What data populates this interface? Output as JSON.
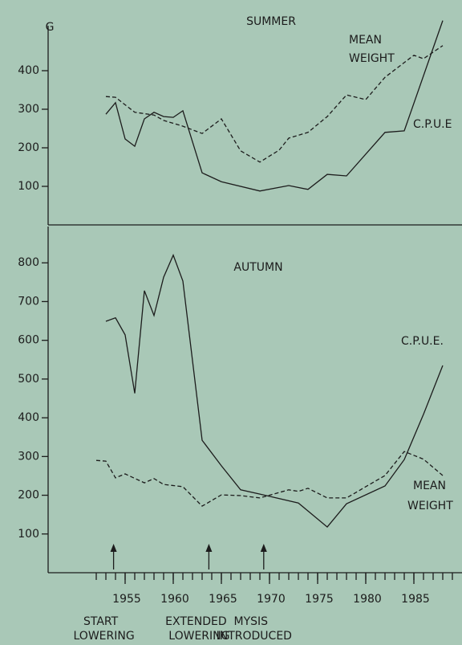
{
  "chart_data": [
    {
      "type": "line",
      "title": "SUMMER",
      "ylabel": "G",
      "xlim": [
        1947,
        1990
      ],
      "ylim": [
        0,
        500
      ],
      "yticks": [
        100,
        200,
        300,
        400
      ],
      "series": [
        {
          "name": [
            "C.P.U.E"
          ],
          "color": "#1c1c1c",
          "style": "solid",
          "x": [
            1953,
            1954,
            1955,
            1956,
            1957,
            1958,
            1959,
            1960,
            1961,
            1963,
            1965,
            1969,
            1972,
            1974,
            1976,
            1978,
            1982,
            1984,
            1988
          ],
          "values": [
            287,
            317,
            223,
            204,
            275,
            292,
            281,
            279,
            296,
            135,
            112,
            88,
            102,
            92,
            131,
            127,
            240,
            244,
            530
          ]
        },
        {
          "name": [
            "MEAN",
            "WEIGHT"
          ],
          "color": "#1c1c1c",
          "style": "dashed",
          "x": [
            1953,
            1954,
            1956,
            1958,
            1959,
            1961,
            1963,
            1965,
            1967,
            1969,
            1971,
            1972,
            1974,
            1976,
            1978,
            1980,
            1982,
            1984,
            1985,
            1986,
            1988
          ],
          "values": [
            333,
            331,
            292,
            285,
            271,
            256,
            237,
            275,
            192,
            163,
            194,
            225,
            240,
            281,
            337,
            325,
            383,
            421,
            440,
            431,
            465
          ]
        }
      ]
    },
    {
      "type": "line",
      "title": "AUTUMN",
      "xlim": [
        1947,
        1990
      ],
      "ylim": [
        0,
        900
      ],
      "yticks": [
        100,
        200,
        300,
        400,
        500,
        600,
        700,
        800
      ],
      "xticks": [
        1955,
        1960,
        1965,
        1970,
        1975,
        1980,
        1985
      ],
      "xminor": [
        1952,
        1953,
        1954,
        1955,
        1956,
        1957,
        1958,
        1959,
        1960,
        1961,
        1962,
        1963,
        1964,
        1965,
        1966,
        1967,
        1968,
        1969,
        1970,
        1971,
        1972,
        1973,
        1974,
        1975,
        1976,
        1977,
        1978,
        1979,
        1980,
        1981,
        1982,
        1983,
        1984,
        1985,
        1986,
        1987,
        1988,
        1989
      ],
      "series": [
        {
          "name": [
            "C.P.U.E."
          ],
          "color": "#1c1c1c",
          "style": "solid",
          "x": [
            1953,
            1954,
            1955,
            1956,
            1957,
            1958,
            1959,
            1960,
            1961,
            1963,
            1965,
            1967,
            1969,
            1973,
            1976,
            1978,
            1982,
            1984,
            1986,
            1988
          ],
          "values": [
            649,
            658,
            614,
            463,
            728,
            664,
            763,
            820,
            753,
            342,
            276,
            214,
            203,
            180,
            118,
            178,
            224,
            292,
            409,
            535
          ]
        },
        {
          "name": [
            "MEAN",
            "WEIGHT"
          ],
          "color": "#1c1c1c",
          "style": "dashed",
          "x": [
            1952,
            1953,
            1954,
            1955,
            1957,
            1958,
            1959,
            1961,
            1963,
            1965,
            1967,
            1969,
            1972,
            1973,
            1974,
            1976,
            1978,
            1982,
            1984,
            1986,
            1988
          ],
          "values": [
            290,
            288,
            245,
            255,
            232,
            243,
            228,
            222,
            172,
            201,
            199,
            193,
            214,
            210,
            218,
            193,
            193,
            251,
            313,
            293,
            251
          ]
        }
      ],
      "annotations": [
        {
          "x": 1953.8,
          "text": [
            "START",
            "LOWERING"
          ]
        },
        {
          "x": 1963.7,
          "text": [
            "EXTENDED",
            "LOWERING"
          ]
        },
        {
          "x": 1969.4,
          "text": [
            "MYSIS",
            "INTRODUCED"
          ]
        }
      ]
    }
  ]
}
